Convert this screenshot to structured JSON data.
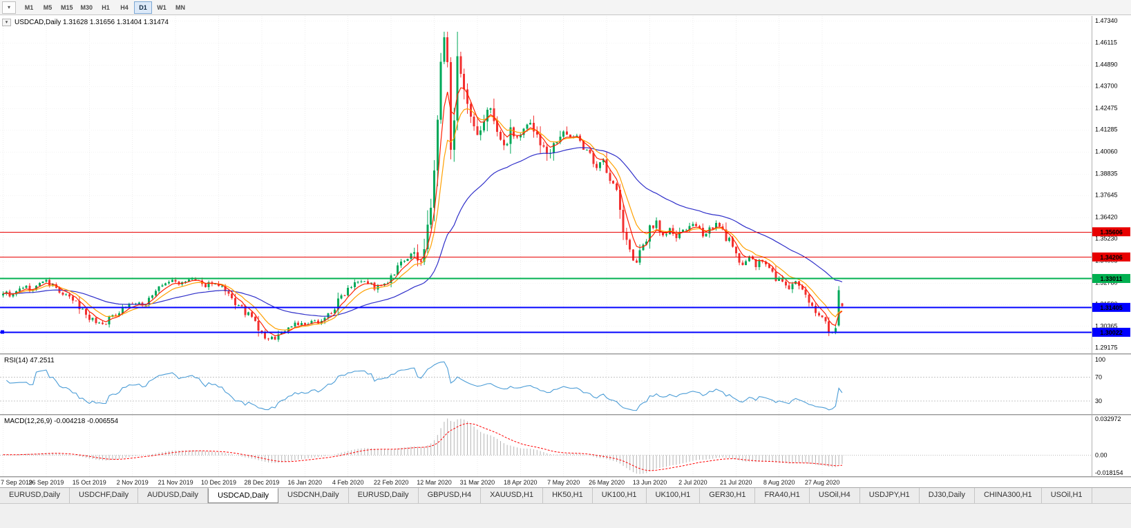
{
  "toolbar": {
    "dropdown_icon": "▾",
    "timeframes": [
      "M1",
      "M5",
      "M15",
      "M30",
      "H1",
      "H4",
      "D1",
      "W1",
      "MN"
    ],
    "active_timeframe": "D1"
  },
  "chart_header": {
    "dropdown_icon": "▾",
    "text": "USDCAD,Daily 1.31628 1.31656 1.31404 1.31474"
  },
  "chart_data": {
    "type": "candlestick",
    "symbol": "USDCAD",
    "timeframe": "Daily",
    "current_ohlc": {
      "open": 1.31628,
      "high": 1.31656,
      "low": 1.31404,
      "close": 1.31474
    },
    "price_axis": {
      "min": 1.2885,
      "max": 1.476,
      "ticks": [
        "1.47340",
        "1.46115",
        "1.44890",
        "1.43700",
        "1.42475",
        "1.41285",
        "1.40060",
        "1.38835",
        "1.37645",
        "1.36420",
        "1.35230",
        "1.34005",
        "1.32780",
        "1.31590",
        "1.30365",
        "1.29175"
      ]
    },
    "x_axis": {
      "labels": [
        {
          "i": 0,
          "t": "7 Sep 2019"
        },
        {
          "i": 13,
          "t": "26 Sep 2019"
        },
        {
          "i": 26,
          "t": "15 Oct 2019"
        },
        {
          "i": 39,
          "t": "2 Nov 2019"
        },
        {
          "i": 52,
          "t": "21 Nov 2019"
        },
        {
          "i": 65,
          "t": "10 Dec 2019"
        },
        {
          "i": 78,
          "t": "28 Dec 2019"
        },
        {
          "i": 91,
          "t": "16 Jan 2020"
        },
        {
          "i": 104,
          "t": "4 Feb 2020"
        },
        {
          "i": 117,
          "t": "22 Feb 2020"
        },
        {
          "i": 130,
          "t": "12 Mar 2020"
        },
        {
          "i": 143,
          "t": "31 Mar 2020"
        },
        {
          "i": 156,
          "t": "18 Apr 2020"
        },
        {
          "i": 169,
          "t": "7 May 2020"
        },
        {
          "i": 182,
          "t": "26 May 2020"
        },
        {
          "i": 195,
          "t": "13 Jun 2020"
        },
        {
          "i": 208,
          "t": "2 Jul 2020"
        },
        {
          "i": 221,
          "t": "21 Jul 2020"
        },
        {
          "i": 234,
          "t": "8 Aug 2020"
        },
        {
          "i": 247,
          "t": "27 Aug 2020"
        }
      ]
    },
    "candles": {
      "count": 254,
      "anchors": [
        [
          0,
          1.3225
        ],
        [
          3,
          1.3205
        ],
        [
          6,
          1.3255
        ],
        [
          9,
          1.3235
        ],
        [
          12,
          1.329
        ],
        [
          15,
          1.326
        ],
        [
          18,
          1.321
        ],
        [
          21,
          1.318
        ],
        [
          24,
          1.3125
        ],
        [
          27,
          1.307
        ],
        [
          30,
          1.3048
        ],
        [
          33,
          1.309
        ],
        [
          36,
          1.314
        ],
        [
          39,
          1.3165
        ],
        [
          42,
          1.315
        ],
        [
          45,
          1.3215
        ],
        [
          48,
          1.326
        ],
        [
          51,
          1.329
        ],
        [
          54,
          1.327
        ],
        [
          57,
          1.33
        ],
        [
          60,
          1.326
        ],
        [
          63,
          1.328
        ],
        [
          66,
          1.324
        ],
        [
          69,
          1.318
        ],
        [
          72,
          1.313
        ],
        [
          75,
          1.308
        ],
        [
          78,
          1.299
        ],
        [
          80,
          1.2958
        ],
        [
          82,
          1.2975
        ],
        [
          85,
          1.3015
        ],
        [
          88,
          1.3055
        ],
        [
          91,
          1.304
        ],
        [
          94,
          1.3058
        ],
        [
          97,
          1.308
        ],
        [
          100,
          1.314
        ],
        [
          103,
          1.323
        ],
        [
          106,
          1.329
        ],
        [
          109,
          1.3295
        ],
        [
          112,
          1.325
        ],
        [
          115,
          1.3262
        ],
        [
          118,
          1.332
        ],
        [
          120,
          1.338
        ],
        [
          122,
          1.342
        ],
        [
          124,
          1.3435
        ],
        [
          126,
          1.34
        ],
        [
          127,
          1.348
        ],
        [
          128,
          1.356
        ],
        [
          129,
          1.37
        ],
        [
          130,
          1.391
        ],
        [
          131,
          1.415
        ],
        [
          132,
          1.448
        ],
        [
          133,
          1.464
        ],
        [
          134,
          1.447
        ],
        [
          135,
          1.406
        ],
        [
          136,
          1.423
        ],
        [
          137,
          1.449
        ],
        [
          138,
          1.44
        ],
        [
          139,
          1.431
        ],
        [
          141,
          1.417
        ],
        [
          143,
          1.409
        ],
        [
          145,
          1.4175
        ],
        [
          147,
          1.426
        ],
        [
          149,
          1.411
        ],
        [
          151,
          1.403
        ],
        [
          153,
          1.414
        ],
        [
          155,
          1.408
        ],
        [
          157,
          1.4125
        ],
        [
          159,
          1.4175
        ],
        [
          161,
          1.409
        ],
        [
          163,
          1.4015
        ],
        [
          165,
          1.3995
        ],
        [
          167,
          1.4085
        ],
        [
          169,
          1.4125
        ],
        [
          171,
          1.4075
        ],
        [
          173,
          1.4105
        ],
        [
          175,
          1.403
        ],
        [
          177,
          1.3975
        ],
        [
          179,
          1.3905
        ],
        [
          181,
          1.3975
        ],
        [
          183,
          1.3865
        ],
        [
          185,
          1.3775
        ],
        [
          187,
          1.357
        ],
        [
          189,
          1.344
        ],
        [
          191,
          1.3395
        ],
        [
          193,
          1.3465
        ],
        [
          195,
          1.358
        ],
        [
          197,
          1.362
        ],
        [
          199,
          1.3535
        ],
        [
          201,
          1.3575
        ],
        [
          203,
          1.3525
        ],
        [
          205,
          1.356
        ],
        [
          207,
          1.36
        ],
        [
          209,
          1.358
        ],
        [
          211,
          1.3545
        ],
        [
          213,
          1.358
        ],
        [
          215,
          1.36
        ],
        [
          217,
          1.356
        ],
        [
          219,
          1.3505
        ],
        [
          221,
          1.342
        ],
        [
          223,
          1.3385
        ],
        [
          225,
          1.342
        ],
        [
          227,
          1.3372
        ],
        [
          229,
          1.34
        ],
        [
          231,
          1.3352
        ],
        [
          233,
          1.3305
        ],
        [
          235,
          1.3282
        ],
        [
          237,
          1.3245
        ],
        [
          239,
          1.3278
        ],
        [
          241,
          1.3222
        ],
        [
          243,
          1.318
        ],
        [
          245,
          1.3132
        ],
        [
          247,
          1.3078
        ],
        [
          249,
          1.302
        ],
        [
          250,
          1.2998
        ],
        [
          251,
          1.3042
        ],
        [
          252,
          1.3235
        ],
        [
          253,
          1.31474
        ]
      ]
    },
    "hlines": [
      {
        "value": 1.35606,
        "label": "1.35606",
        "color": "#e80000",
        "width": 1
      },
      {
        "value": 1.34206,
        "label": "1.34206",
        "color": "#e80000",
        "width": 1
      },
      {
        "value": 1.33011,
        "label": "1.33011",
        "color": "#00b050",
        "width": 2
      },
      {
        "value": 1.31405,
        "label": "1.31405",
        "color": "#0000ff",
        "width": 2
      },
      {
        "value": 1.30022,
        "label": "1.30022",
        "color": "#0000ff",
        "width": 2,
        "handles": true
      }
    ],
    "moving_averages": [
      {
        "color": "#ff2000"
      },
      {
        "color": "#ffa000"
      },
      {
        "color": "#2e2ec9"
      }
    ],
    "colors": {
      "up": "#00a859",
      "down": "#f23030",
      "background": "#ffffff",
      "grid": "#ececec"
    },
    "indicators": {
      "rsi": {
        "label": "RSI(14) 47.2511",
        "levels": [
          "100",
          "70",
          "30"
        ],
        "line_color": "#4a9cd6"
      },
      "macd": {
        "label": "MACD(12,26,9) -0.004218 -0.006554",
        "axis": [
          "0.032972",
          "0.00",
          "-0.018154"
        ],
        "range": [
          -0.018154,
          0.032972
        ],
        "histogram_color": "#b4b4b4",
        "signal_color": "#ff0000"
      }
    }
  },
  "tabbar": {
    "tabs": [
      "EURUSD,Daily",
      "USDCHF,Daily",
      "AUDUSD,Daily",
      "USDCAD,Daily",
      "USDCNH,Daily",
      "EURUSD,Daily",
      "GBPUSD,H4",
      "XAUUSD,H1",
      "HK50,H1",
      "UK100,H1",
      "UK100,H1",
      "GER30,H1",
      "FRA40,H1",
      "USOil,H4",
      "USDJPY,H1",
      "DJ30,Daily",
      "CHINA300,H1",
      "USOil,H1"
    ],
    "active_index": 3
  }
}
